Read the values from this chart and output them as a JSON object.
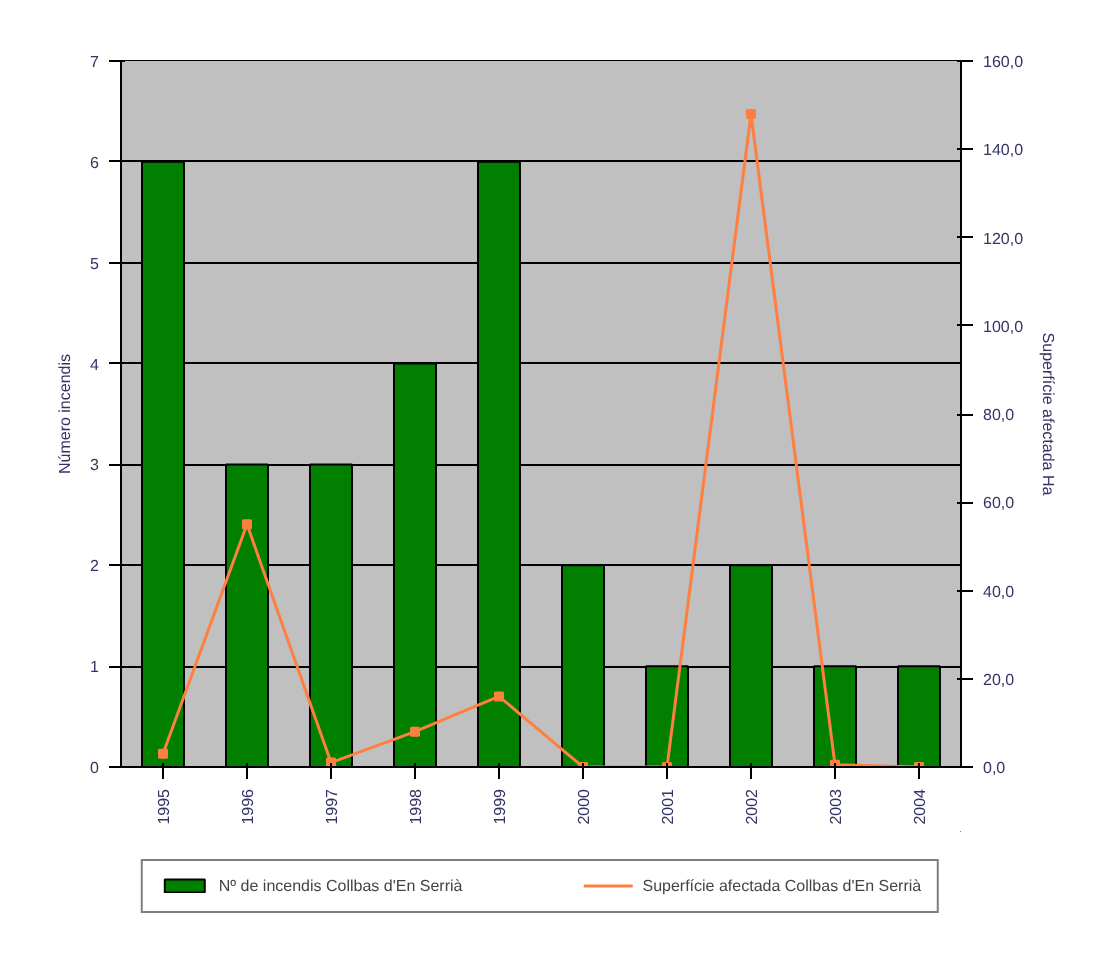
{
  "chart_data": {
    "type": "bar",
    "categories": [
      "1995",
      "1996",
      "1997",
      "1998",
      "1999",
      "2000",
      "2001",
      "2002",
      "2003",
      "2004"
    ],
    "ylabel": "Número incendis",
    "y2label": "Superfície afectada Ha",
    "series": [
      {
        "name": "Nº de incendis Collbas d'En Serrià",
        "color": "#007f00",
        "values": [
          6,
          3,
          3,
          4,
          6,
          2,
          1,
          2,
          1,
          1
        ]
      },
      {
        "name": "Superfície afectada Collbas d'En Serrià",
        "type": "line",
        "axis": "y2",
        "color": "#ff7f3f",
        "values": [
          3,
          55,
          1,
          8,
          16,
          0,
          0,
          148,
          0.5,
          0
        ]
      }
    ],
    "ylim": [
      0,
      7
    ],
    "yticks": [
      0,
      1,
      2,
      3,
      4,
      5,
      6,
      7
    ],
    "y2lim": [
      0,
      160
    ],
    "y2ticks": [
      {
        "value": 0,
        "label": "0,0"
      },
      {
        "value": 20,
        "label": "20,0"
      },
      {
        "value": 40,
        "label": "40,0"
      },
      {
        "value": 60,
        "label": "60,0"
      },
      {
        "value": 80,
        "label": "80,0"
      },
      {
        "value": 100,
        "label": "100,0"
      },
      {
        "value": 120,
        "label": "120,0"
      },
      {
        "value": 140,
        "label": "140,0"
      },
      {
        "value": 160,
        "label": "160,0"
      }
    ],
    "grid": "y",
    "legend": "bottom",
    "marker": "square",
    "line_style": "solid"
  }
}
